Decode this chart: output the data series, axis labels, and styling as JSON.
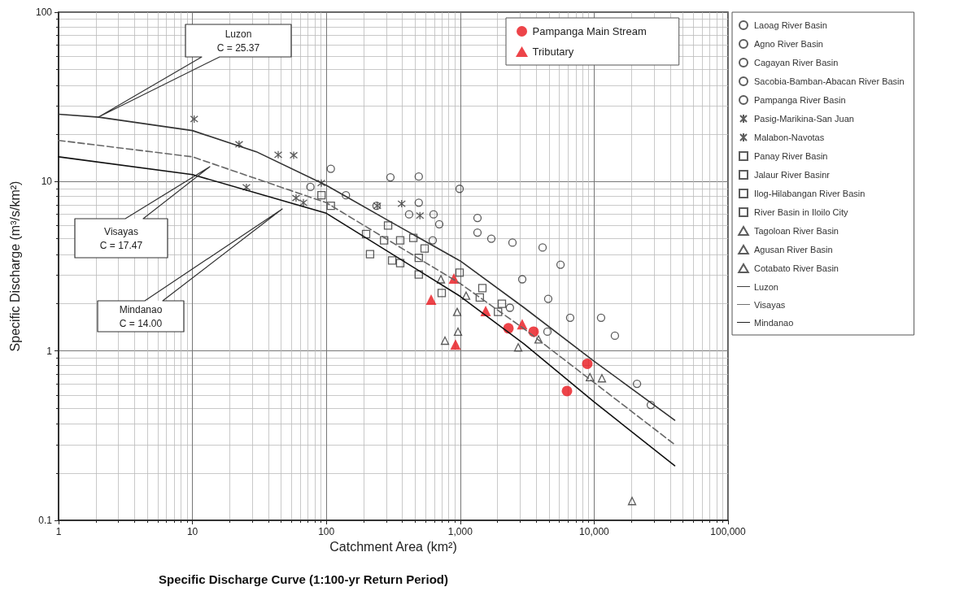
{
  "chart_data": {
    "type": "scatter",
    "title": "Specific Discharge Curve (1:100-yr Return Period)",
    "xlabel": "Catchment Area (km²)",
    "ylabel": "Specific Discharge (m³/s/km²)",
    "log": "xy",
    "grid": true,
    "legend": "right",
    "xlim": [
      1,
      100000
    ],
    "xticks": [
      1,
      10,
      100,
      {
        "value": 1000,
        "label": "1,000"
      },
      {
        "value": 10000,
        "label": "10,000"
      },
      {
        "value": 100000,
        "label": "100,000"
      }
    ],
    "ylim": [
      0.1,
      100
    ],
    "yticks": [
      0.1,
      1,
      10,
      100
    ],
    "annotations": [
      "Luzon\nC = 25.37",
      "Visayas\nC = 17.47",
      "Mindanao\nC = 14.00"
    ],
    "series": [
      {
        "name": "Pampanga Main Stream",
        "marker": "circle",
        "color": "#e8151b",
        "x": [
          2290,
          3530,
          8890,
          6270
        ],
        "values": [
          1.36,
          1.3,
          0.84,
          0.58
        ]
      },
      {
        "name": "Tributary",
        "marker": "triangle",
        "color": "#e8151b",
        "x": [
          897,
          606,
          1549,
          2900,
          922
        ],
        "values": [
          2.68,
          2.01,
          1.72,
          1.44,
          1.09
        ]
      },
      {
        "name": "Laoag River Basin",
        "marker": "circle",
        "color": "#333333",
        "x": [
          76,
          108,
          140,
          237
        ],
        "values": [
          9.3,
          11.9,
          8.3,
          7.2
        ]
      },
      {
        "name": "Agno River Basin",
        "marker": "circle",
        "color": "#333333",
        "x": [
          301,
          490,
          490,
          415,
          632,
          697,
          623
        ],
        "values": [
          10.6,
          10.7,
          7.5,
          6.4,
          6.4,
          5.6,
          4.5
        ]
      },
      {
        "name": "Cagayan River Basin",
        "marker": "circle",
        "color": "#333333",
        "x": [
          989,
          1345,
          1345,
          1706,
          2455,
          4120,
          5610
        ],
        "values": [
          9.06,
          6.1,
          5.0,
          4.6,
          4.36,
          4.08,
          3.23
        ]
      },
      {
        "name": "Sacobia-Bamban-Abacan River Basin",
        "marker": "circle",
        "color": "#333333",
        "x": [
          2904,
          4540,
          2350,
          4480
        ],
        "values": [
          2.65,
          2.03,
          1.8,
          1.3
        ]
      },
      {
        "name": "Pampanga River Basin",
        "marker": "circle",
        "color": "#333333",
        "x": [
          6620,
          11270,
          14290,
          20900,
          26500
        ],
        "values": [
          1.57,
          1.57,
          1.23,
          0.64,
          0.48
        ]
      },
      {
        "name": "Pasig-Marikina-San Juan",
        "marker": "cross",
        "color": "#333333",
        "x": [
          10.3,
          22.3,
          43.7,
          57,
          25.3
        ],
        "values": [
          23.4,
          16.6,
          14.4,
          14.3,
          9.25
        ]
      },
      {
        "name": "Malabon-Navotas",
        "marker": "cross",
        "color": "#333333",
        "x": [
          59.4,
          67.4,
          91.7,
          240,
          365,
          500
        ],
        "values": [
          8.0,
          7.5,
          9.8,
          7.2,
          7.4,
          6.3
        ]
      },
      {
        "name": "Panay River Basin",
        "marker": "square",
        "color": "#333333",
        "x": [
          92,
          108,
          198,
          212
        ],
        "values": [
          8.3,
          7.2,
          4.9,
          3.73
        ]
      },
      {
        "name": "Jalaur River Basinr",
        "marker": "square",
        "color": "#333333",
        "x": [
          289,
          356,
          446,
          542,
          270
        ],
        "values": [
          5.5,
          4.5,
          4.65,
          4.03,
          4.5
        ]
      },
      {
        "name": "Ilog-Hilabangan River Basin",
        "marker": "square",
        "color": "#333333",
        "x": [
          310,
          356,
          490,
          490,
          989
        ],
        "values": [
          3.42,
          3.3,
          3.55,
          2.83,
          2.9
        ]
      },
      {
        "name": "River Basin in Iloilo City",
        "marker": "square",
        "color": "#333333",
        "x": [
          727,
          1463,
          2047,
          1915,
          1400
        ],
        "values": [
          2.2,
          2.35,
          1.9,
          1.7,
          2.07
        ]
      },
      {
        "name": "Tagoloan River Basin",
        "marker": "triangle",
        "color": "#333333",
        "x": [
          717,
          948,
          1106
        ],
        "values": [
          2.65,
          1.7,
          2.12
        ]
      },
      {
        "name": "Agusan River Basin",
        "marker": "triangle",
        "color": "#333333",
        "x": [
          769,
          962,
          2710,
          3845
        ],
        "values": [
          1.15,
          1.3,
          1.05,
          1.17
        ]
      },
      {
        "name": "Cotabato River Basin",
        "marker": "triangle",
        "color": "#333333",
        "x": [
          9300,
          11430,
          19200
        ],
        "values": [
          0.7,
          0.69,
          0.13
        ]
      },
      {
        "name": "Luzon",
        "type": "line",
        "marker": "none",
        "line_style": "solid",
        "color": "#333333",
        "x": [
          1,
          2,
          10,
          30,
          100,
          300,
          1000,
          3000,
          10000,
          40000
        ],
        "values": [
          25,
          24,
          20,
          15,
          9.5,
          5.8,
          3.4,
          1.8,
          0.87,
          0.39
        ]
      },
      {
        "name": "Visayas",
        "type": "line",
        "marker": "none",
        "line_style": "dashed",
        "color": "#666666",
        "x": [
          1,
          10,
          100,
          1000,
          3000,
          10000,
          40000
        ],
        "values": [
          17.5,
          14,
          7.5,
          2.5,
          1.35,
          0.65,
          0.28
        ]
      },
      {
        "name": "Mindanao",
        "type": "line",
        "marker": "none",
        "line_style": "solid",
        "color": "#111111",
        "x": [
          1,
          10,
          100,
          1000,
          3000,
          10000,
          40000
        ],
        "values": [
          14,
          11,
          6.5,
          2.1,
          1.1,
          0.5,
          0.21
        ]
      }
    ]
  }
}
